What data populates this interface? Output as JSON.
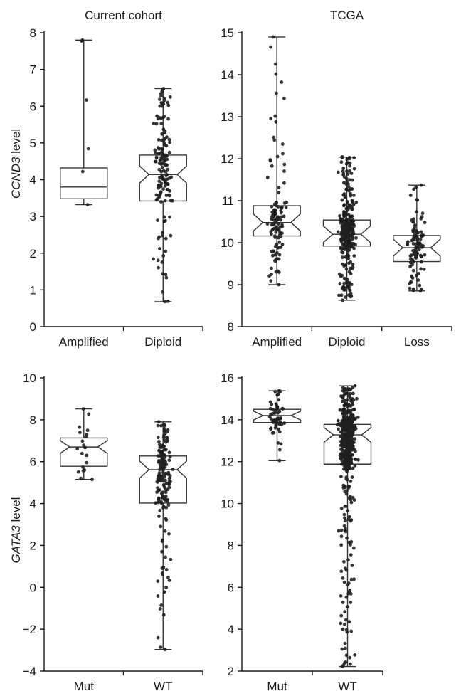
{
  "figure": {
    "ylabel_top": {
      "gene": "CCND3",
      "suffix": " level"
    },
    "ylabel_bottom": {
      "gene": "GATA3",
      "suffix": " level"
    }
  },
  "chart_data": [
    {
      "type": "box",
      "title": "Current cohort",
      "ylabel": "CCND3 level",
      "ylim": [
        0,
        8
      ],
      "yticks": [
        0,
        1,
        2,
        3,
        4,
        5,
        6,
        7,
        8
      ],
      "categories": [
        "Amplified",
        "Diploid"
      ],
      "boxes": [
        {
          "category": "Amplified",
          "whisker_low": 3.32,
          "q1": 3.48,
          "median": 3.8,
          "q3": 4.32,
          "whisker_high": 7.8,
          "notched": false,
          "n_points": 6
        },
        {
          "category": "Diploid",
          "whisker_low": 0.68,
          "q1": 3.42,
          "median": 4.14,
          "q3": 4.67,
          "whisker_high": 6.48,
          "notched": true,
          "n_points": 150
        }
      ]
    },
    {
      "type": "box",
      "title": "TCGA",
      "ylabel": "",
      "ylim": [
        8,
        15
      ],
      "yticks": [
        8,
        9,
        10,
        11,
        12,
        13,
        14,
        15
      ],
      "categories": [
        "Amplified",
        "Diploid",
        "Loss"
      ],
      "boxes": [
        {
          "category": "Amplified",
          "whisker_low": 9.0,
          "q1": 10.16,
          "median": 10.48,
          "q3": 10.88,
          "whisker_high": 14.9,
          "notched": true,
          "n_points": 120
        },
        {
          "category": "Diploid",
          "whisker_low": 8.63,
          "q1": 9.92,
          "median": 10.2,
          "q3": 10.54,
          "whisker_high": 12.04,
          "notched": true,
          "n_points": 320
        },
        {
          "category": "Loss",
          "whisker_low": 8.85,
          "q1": 9.55,
          "median": 9.88,
          "q3": 10.17,
          "whisker_high": 11.37,
          "notched": true,
          "n_points": 100
        }
      ]
    },
    {
      "type": "box",
      "title": "",
      "ylabel": "GATA3 level",
      "ylim": [
        -4,
        10
      ],
      "yticks": [
        -4,
        -2,
        0,
        2,
        4,
        6,
        8,
        10
      ],
      "ytick_labels": [
        "−4",
        "−2",
        "0",
        "2",
        "4",
        "6",
        "8",
        "10"
      ],
      "categories": [
        "Mut",
        "WT"
      ],
      "boxes": [
        {
          "category": "Mut",
          "whisker_low": 5.15,
          "q1": 5.78,
          "median": 6.7,
          "q3": 7.13,
          "whisker_high": 8.52,
          "notched": true,
          "n_points": 20
        },
        {
          "category": "WT",
          "whisker_low": -2.97,
          "q1": 4.02,
          "median": 5.62,
          "q3": 6.27,
          "whisker_high": 7.9,
          "notched": true,
          "n_points": 170
        }
      ]
    },
    {
      "type": "box",
      "title": "",
      "ylabel": "",
      "ylim": [
        2,
        16
      ],
      "yticks": [
        2,
        4,
        6,
        8,
        10,
        12,
        14,
        16
      ],
      "categories": [
        "Mut",
        "WT"
      ],
      "boxes": [
        {
          "category": "Mut",
          "whisker_low": 12.05,
          "q1": 13.87,
          "median": 14.2,
          "q3": 14.5,
          "whisker_high": 15.38,
          "notched": true,
          "n_points": 60
        },
        {
          "category": "WT",
          "whisker_low": 2.22,
          "q1": 11.88,
          "median": 13.28,
          "q3": 13.78,
          "whisker_high": 15.62,
          "notched": true,
          "n_points": 480
        }
      ]
    }
  ]
}
